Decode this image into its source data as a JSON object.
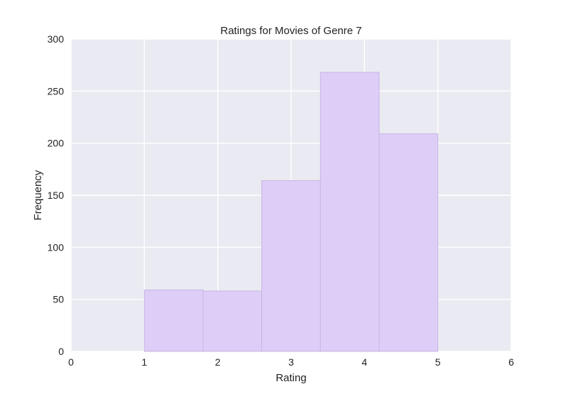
{
  "chart_data": {
    "type": "bar",
    "title": "Ratings for Movies of Genre 7",
    "xlabel": "Rating",
    "ylabel": "Frequency",
    "xlim": [
      0,
      6
    ],
    "ylim": [
      0,
      300
    ],
    "xticks": [
      "0",
      "1",
      "2",
      "3",
      "4",
      "5",
      "6"
    ],
    "yticks": [
      "0",
      "50",
      "100",
      "150",
      "200",
      "250",
      "300"
    ],
    "bins": [
      {
        "x0": 1.0,
        "x1": 1.8,
        "value": 59
      },
      {
        "x0": 1.8,
        "x1": 2.6,
        "value": 58
      },
      {
        "x0": 2.6,
        "x1": 3.4,
        "value": 164
      },
      {
        "x0": 3.4,
        "x1": 4.2,
        "value": 268
      },
      {
        "x0": 4.2,
        "x1": 5.0,
        "value": 209
      }
    ],
    "grid": true,
    "colors": {
      "background": "#eaeaf2",
      "grid": "#ffffff",
      "bar_fill": "#ddcdf7",
      "bar_stroke": "#c7b7e2"
    }
  }
}
